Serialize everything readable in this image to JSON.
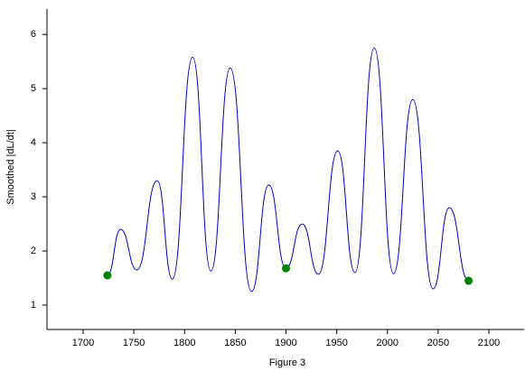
{
  "chart_data": {
    "type": "line",
    "xlabel": "Figure 3",
    "ylabel": "Smoothed |dL/dt|",
    "x": [
      1724,
      1737,
      1753,
      1773,
      1788,
      1808,
      1826,
      1845,
      1866,
      1883,
      1900,
      1916,
      1932,
      1951,
      1968,
      1987,
      2006,
      2025,
      2045,
      2061,
      2080
    ],
    "values": [
      1.55,
      2.4,
      1.65,
      3.3,
      1.48,
      5.58,
      1.63,
      5.38,
      1.25,
      3.22,
      1.68,
      2.5,
      1.57,
      3.85,
      1.6,
      5.75,
      1.58,
      4.8,
      1.3,
      2.8,
      1.45
    ],
    "color": "#0000cc",
    "markers": {
      "x": [
        1724,
        1900,
        2080
      ],
      "values": [
        1.55,
        1.68,
        1.45
      ],
      "color": "#008000"
    },
    "xlim": [
      1664.4,
      2134.7
    ],
    "ylim": [
      0.55,
      6.47
    ],
    "xticks": [
      1700,
      1750,
      1800,
      1850,
      1900,
      1950,
      2000,
      2050,
      2100
    ],
    "yticks": [
      1,
      2,
      3,
      4,
      5,
      6
    ]
  }
}
